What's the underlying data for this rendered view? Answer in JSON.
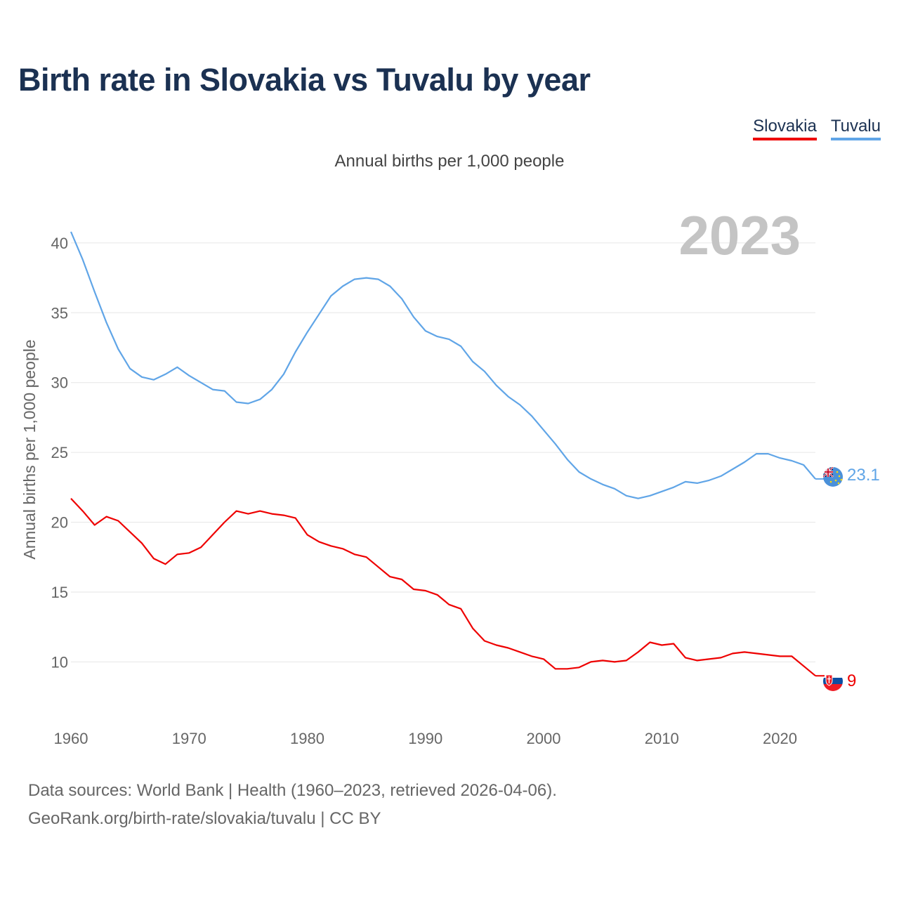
{
  "title": "Birth rate in Slovakia vs Tuvalu by year",
  "legend": [
    {
      "label": "Slovakia",
      "color": "#ee0000"
    },
    {
      "label": "Tuvalu",
      "color": "#60a5e7"
    }
  ],
  "subtitle": "Annual births per 1,000 people",
  "footer": {
    "line1": "Data sources: World Bank | Health (1960–2023, retrieved 2026-04-06).",
    "line2": "GeoRank.org/birth-rate/slovakia/tuvalu | CC BY"
  },
  "chart_data": {
    "type": "line",
    "title": "Birth rate in Slovakia vs Tuvalu by year",
    "ylabel": "Annual births per 1,000 people",
    "xlabel": "",
    "year_label": "2023",
    "xlim": [
      1960,
      2023
    ],
    "ylim": [
      7,
      41
    ],
    "x_ticks": [
      1960,
      1970,
      1980,
      1990,
      2000,
      2010,
      2020
    ],
    "y_ticks": [
      10,
      15,
      20,
      25,
      30,
      35,
      40
    ],
    "grid": true,
    "legend_position": "top-right",
    "series": [
      {
        "name": "Slovakia",
        "color": "#ee0000",
        "end_label": "9",
        "flag_icon": "slovakia-flag-icon",
        "x_start": 1960,
        "values": [
          21.7,
          20.8,
          19.8,
          20.4,
          20.1,
          19.3,
          18.5,
          17.4,
          17.0,
          17.7,
          17.8,
          18.2,
          19.1,
          20.0,
          20.8,
          20.6,
          20.8,
          20.6,
          20.5,
          20.3,
          19.1,
          18.6,
          18.3,
          18.1,
          17.7,
          17.5,
          16.8,
          16.1,
          15.9,
          15.2,
          15.1,
          14.8,
          14.1,
          13.8,
          12.4,
          11.5,
          11.2,
          11.0,
          10.7,
          10.4,
          10.2,
          9.5,
          9.5,
          9.6,
          10.0,
          10.1,
          10.0,
          10.1,
          10.7,
          11.4,
          11.2,
          11.3,
          10.3,
          10.1,
          10.2,
          10.3,
          10.6,
          10.7,
          10.6,
          10.5,
          10.4,
          10.4,
          9.7,
          9.0
        ]
      },
      {
        "name": "Tuvalu",
        "color": "#60a5e7",
        "end_label": "23.1",
        "flag_icon": "tuvalu-flag-icon",
        "x_start": 1960,
        "values": [
          40.8,
          38.8,
          36.5,
          34.3,
          32.4,
          31.0,
          30.4,
          30.2,
          30.6,
          31.1,
          30.5,
          30.0,
          29.5,
          29.4,
          28.6,
          28.5,
          28.8,
          29.5,
          30.6,
          32.2,
          33.6,
          34.9,
          36.2,
          36.9,
          37.4,
          37.5,
          37.4,
          36.9,
          36.0,
          34.7,
          33.7,
          33.3,
          33.1,
          32.6,
          31.5,
          30.8,
          29.8,
          29.0,
          28.4,
          27.6,
          26.6,
          25.6,
          24.5,
          23.6,
          23.1,
          22.7,
          22.4,
          21.9,
          21.7,
          21.9,
          22.2,
          22.5,
          22.9,
          22.8,
          23.0,
          23.3,
          23.8,
          24.3,
          24.9,
          24.9,
          24.6,
          24.4,
          24.1,
          23.1
        ]
      }
    ]
  }
}
